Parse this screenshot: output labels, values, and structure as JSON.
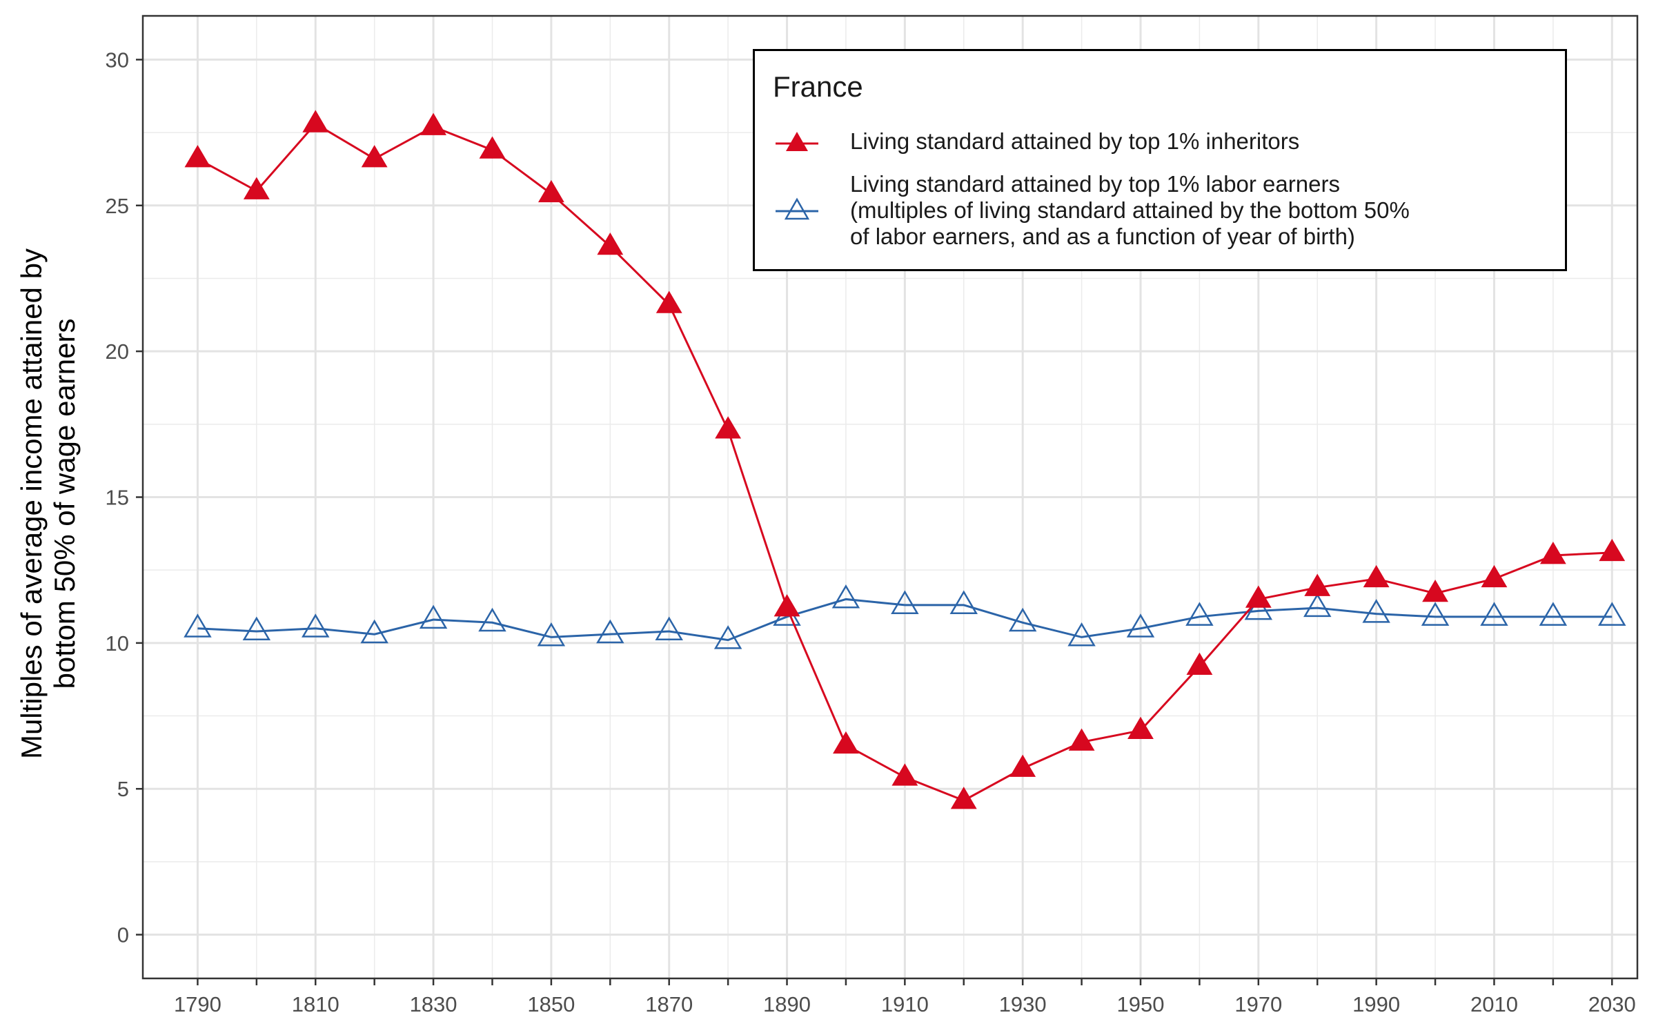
{
  "chart_data": {
    "type": "line",
    "title": "",
    "xlabel": "",
    "ylabel": "Multiples of average income attained by\nbottom 50% of wage earners",
    "x": [
      1790,
      1800,
      1810,
      1820,
      1830,
      1840,
      1850,
      1860,
      1870,
      1880,
      1890,
      1900,
      1910,
      1920,
      1930,
      1940,
      1950,
      1960,
      1970,
      1980,
      1990,
      2000,
      2010,
      2020,
      2030
    ],
    "xlim": [
      1780.7,
      2034.3
    ],
    "ylim": [
      -1.5,
      31.5
    ],
    "x_ticks": [
      "1790",
      "1810",
      "1830",
      "1850",
      "1870",
      "1890",
      "1910",
      "1930",
      "1950",
      "1970",
      "1990",
      "2010",
      "2030"
    ],
    "y_ticks": [
      "0",
      "5",
      "10",
      "15",
      "20",
      "25",
      "30"
    ],
    "grid": true,
    "legend_title": "France",
    "legend_position": "top-right",
    "series": [
      {
        "name": "Living standard attained by top 1% inheritors",
        "color": "#d7081f",
        "marker": "filled-triangle",
        "values": [
          26.6,
          25.5,
          27.8,
          26.6,
          27.7,
          26.9,
          25.4,
          23.6,
          21.6,
          17.3,
          11.2,
          6.5,
          5.4,
          4.6,
          5.7,
          6.6,
          7.0,
          9.2,
          11.5,
          11.9,
          12.2,
          11.7,
          12.2,
          13.0,
          13.1
        ]
      },
      {
        "name": "Living standard attained by top 1% labor earners\n(multiples of living standard attained by the bottom 50%\nof labor earners, and as a function of year of birth)",
        "color": "#2b64a8",
        "marker": "open-triangle",
        "values": [
          10.5,
          10.4,
          10.5,
          10.3,
          10.8,
          10.7,
          10.2,
          10.3,
          10.4,
          10.1,
          10.9,
          11.5,
          11.3,
          11.3,
          10.7,
          10.2,
          10.5,
          10.9,
          11.1,
          11.2,
          11.0,
          10.9,
          10.9,
          10.9,
          10.9
        ]
      }
    ]
  }
}
